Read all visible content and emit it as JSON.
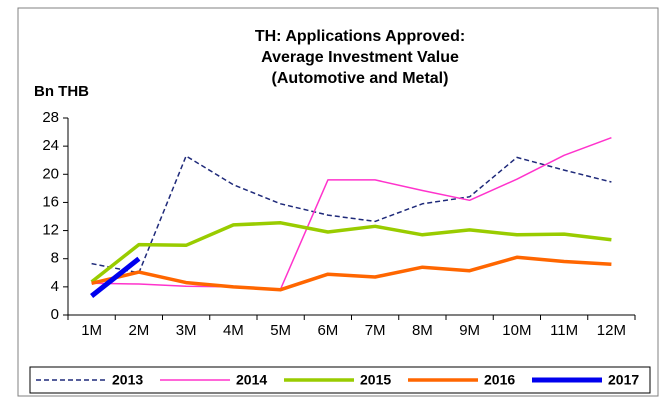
{
  "chart_data": {
    "type": "line",
    "title": [
      "TH: Applications Approved:",
      "Average Investment Value",
      "(Automotive and Metal)"
    ],
    "y_label": "Bn THB",
    "categories": [
      "1M",
      "2M",
      "3M",
      "4M",
      "5M",
      "6M",
      "7M",
      "8M",
      "9M",
      "10M",
      "11M",
      "12M"
    ],
    "series": [
      {
        "name": "2013",
        "color": "#1f2a7a",
        "width": 1.5,
        "dash": true,
        "values": [
          7.3,
          6.0,
          22.6,
          18.5,
          15.8,
          14.2,
          13.3,
          15.8,
          16.8,
          22.4,
          20.6,
          18.9
        ]
      },
      {
        "name": "2014",
        "color": "#ff33cc",
        "width": 1.5,
        "dash": false,
        "values": [
          4.5,
          4.4,
          4.1,
          4.0,
          3.7,
          19.2,
          19.2,
          17.7,
          16.3,
          19.3,
          22.7,
          25.2
        ]
      },
      {
        "name": "2015",
        "color": "#99cc00",
        "width": 3.5,
        "dash": false,
        "values": [
          4.7,
          10.0,
          9.9,
          12.8,
          13.1,
          11.8,
          12.6,
          11.4,
          12.1,
          11.4,
          11.5,
          10.7
        ]
      },
      {
        "name": "2016",
        "color": "#ff6600",
        "width": 3.5,
        "dash": false,
        "values": [
          4.5,
          6.1,
          4.6,
          4.0,
          3.6,
          5.8,
          5.4,
          6.8,
          6.3,
          8.2,
          7.6,
          7.2
        ]
      },
      {
        "name": "2017",
        "color": "#0000ee",
        "width": 5,
        "dash": false,
        "values": [
          2.7,
          8.0,
          null,
          null,
          null,
          null,
          null,
          null,
          null,
          null,
          null,
          null
        ]
      }
    ],
    "ylim": [
      0,
      28
    ],
    "yticks": [
      0,
      4,
      8,
      12,
      16,
      20,
      24,
      28
    ],
    "grid": false,
    "legend": "bottom"
  }
}
